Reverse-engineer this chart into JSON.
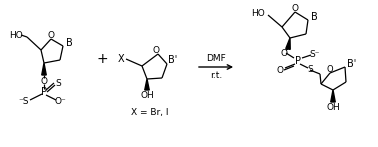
{
  "bg_color": "#ffffff",
  "line_color": "#000000",
  "figsize": [
    3.78,
    1.47
  ],
  "dpi": 100,
  "arrow_label_top": "DMF",
  "arrow_label_bot": "r.t.",
  "x_eq_label": "X = Br, I",
  "plus_symbol": "+",
  "labels": {
    "B": "B",
    "Bp": "B'",
    "HO": "HO",
    "O": "O",
    "P": "P",
    "S": "S",
    "Sm": "⁻",
    "OH": "OH",
    "X": "X",
    "Om": "O⁻"
  }
}
